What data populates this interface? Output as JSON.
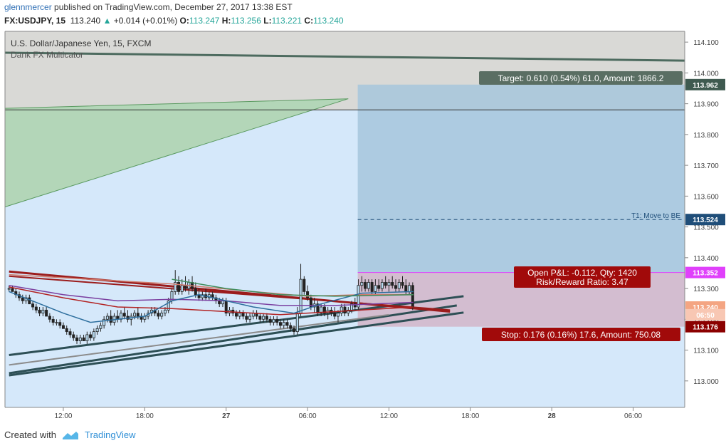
{
  "header": {
    "author": "glennmercer",
    "published": "published on TradingView.com, December 27, 2017 13:38 EST",
    "symbol": "FX:USDJPY, 15",
    "price": "113.240",
    "change": "+0.014 (+0.01%)",
    "o_label": "O:",
    "o": "113.247",
    "h_label": "H:",
    "h": "113.256",
    "l_label": "L:",
    "l": "113.221",
    "c_label": "C:",
    "c": "113.240"
  },
  "legend": {
    "series": "U.S. Dollar/Japanese Yen, 15, FXCM",
    "indicator": "Dank FX Multicator"
  },
  "annotations": {
    "target": "Target: 0.610 (0.54%) 61.0, Amount: 1866.2",
    "t1": "T1:  Move to BE",
    "open_pnl": "Open P&L: -0.112, Qty: 1420",
    "risk_reward": "Risk/Reward Ratio: 3.47",
    "stop": "Stop: 0.176 (0.16%) 17.6, Amount: 750.08"
  },
  "price_tags": [
    {
      "text": "113.962",
      "value": 113.962,
      "bg": "#3f5a50",
      "fg": "#ffffff"
    },
    {
      "text": "113.524",
      "value": 113.524,
      "bg": "#1f4e79",
      "fg": "#ffffff"
    },
    {
      "text": "113.352",
      "value": 113.352,
      "bg": "#e040fb",
      "fg": "#ffffff"
    },
    {
      "text": "113.240",
      "value": 113.24,
      "bg": "#f4a582",
      "fg": "#ffffff"
    },
    {
      "text": "06:50",
      "value": 113.215,
      "bg": "#f8c7b3",
      "fg": "#ffffff"
    },
    {
      "text": "113.176",
      "value": 113.176,
      "bg": "#8b0000",
      "fg": "#ffffff"
    }
  ],
  "footer": {
    "created_with": "Created with",
    "brand": "TradingView"
  },
  "colors": {
    "chart_bg": "#d5e8fa",
    "target_zone": "#a6c6dc",
    "stop_zone": "#d3bdd0",
    "upper_zone": "#d9d9d6",
    "up_candle": "#b9dcf2",
    "down_candle": "#222222"
  },
  "chart_data": {
    "type": "candlestick",
    "title": "U.S. Dollar/Japanese Yen, 15, FXCM",
    "ylim": [
      112.914,
      114.135
    ],
    "y_ticks": [
      113.0,
      113.1,
      113.2,
      113.3,
      113.4,
      113.5,
      113.6,
      113.7,
      113.8,
      113.9,
      114.0,
      114.1
    ],
    "y_tick_labels": [
      "113.000",
      "113.100",
      "113.200",
      "113.300",
      "113.400",
      "113.500",
      "113.600",
      "113.700",
      "113.800",
      "113.900",
      "114.000",
      "114.100"
    ],
    "x_tick_labels": [
      "12:00",
      "18:00",
      "27",
      "06:00",
      "12:00",
      "18:00",
      "28",
      "06:00"
    ],
    "x_ticks_hours": [
      12,
      18,
      24,
      30,
      36,
      42,
      48,
      54
    ],
    "x_range_hours": [
      7.7,
      57.8
    ],
    "candles": [
      [
        8.0,
        113.3,
        113.31,
        113.29,
        113.3
      ],
      [
        8.25,
        113.3,
        113.31,
        113.29,
        113.29
      ],
      [
        8.5,
        113.29,
        113.3,
        113.27,
        113.28
      ],
      [
        8.75,
        113.28,
        113.29,
        113.26,
        113.27
      ],
      [
        9.0,
        113.27,
        113.28,
        113.25,
        113.26
      ],
      [
        9.25,
        113.26,
        113.28,
        113.25,
        113.27
      ],
      [
        9.5,
        113.27,
        113.28,
        113.25,
        113.25
      ],
      [
        9.75,
        113.25,
        113.26,
        113.23,
        113.24
      ],
      [
        10.0,
        113.24,
        113.25,
        113.22,
        113.23
      ],
      [
        10.25,
        113.23,
        113.24,
        113.21,
        113.22
      ],
      [
        10.5,
        113.22,
        113.24,
        113.21,
        113.23
      ],
      [
        10.75,
        113.23,
        113.24,
        113.21,
        113.21
      ],
      [
        11.0,
        113.21,
        113.22,
        113.19,
        113.2
      ],
      [
        11.25,
        113.2,
        113.21,
        113.18,
        113.19
      ],
      [
        11.5,
        113.19,
        113.2,
        113.18,
        113.19
      ],
      [
        11.75,
        113.19,
        113.2,
        113.17,
        113.18
      ],
      [
        12.0,
        113.18,
        113.19,
        113.17,
        113.17
      ],
      [
        12.25,
        113.17,
        113.18,
        113.15,
        113.16
      ],
      [
        12.5,
        113.16,
        113.17,
        113.14,
        113.15
      ],
      [
        12.75,
        113.15,
        113.16,
        113.13,
        113.14
      ],
      [
        13.0,
        113.14,
        113.15,
        113.12,
        113.13
      ],
      [
        13.25,
        113.13,
        113.15,
        113.12,
        113.14
      ],
      [
        13.5,
        113.14,
        113.15,
        113.13,
        113.13
      ],
      [
        13.75,
        113.13,
        113.16,
        113.12,
        113.15
      ],
      [
        14.0,
        113.15,
        113.16,
        113.13,
        113.14
      ],
      [
        14.25,
        113.14,
        113.17,
        113.13,
        113.16
      ],
      [
        14.5,
        113.16,
        113.18,
        113.15,
        113.17
      ],
      [
        14.75,
        113.17,
        113.19,
        113.16,
        113.18
      ],
      [
        15.0,
        113.18,
        113.21,
        113.17,
        113.2
      ],
      [
        15.25,
        113.2,
        113.22,
        113.19,
        113.21
      ],
      [
        15.5,
        113.21,
        113.23,
        113.18,
        113.19
      ],
      [
        15.75,
        113.19,
        113.22,
        113.18,
        113.21
      ],
      [
        16.0,
        113.21,
        113.23,
        113.19,
        113.2
      ],
      [
        16.25,
        113.2,
        113.23,
        113.19,
        113.22
      ],
      [
        16.5,
        113.22,
        113.24,
        113.2,
        113.21
      ],
      [
        16.75,
        113.21,
        113.23,
        113.19,
        113.2
      ],
      [
        17.0,
        113.2,
        113.22,
        113.18,
        113.21
      ],
      [
        17.25,
        113.21,
        113.23,
        113.2,
        113.22
      ],
      [
        17.5,
        113.22,
        113.24,
        113.2,
        113.21
      ],
      [
        17.75,
        113.21,
        113.22,
        113.19,
        113.2
      ],
      [
        18.0,
        113.2,
        113.22,
        113.19,
        113.21
      ],
      [
        18.25,
        113.21,
        113.23,
        113.2,
        113.22
      ],
      [
        18.5,
        113.22,
        113.24,
        113.21,
        113.23
      ],
      [
        18.75,
        113.23,
        113.24,
        113.21,
        113.22
      ],
      [
        19.0,
        113.22,
        113.23,
        113.2,
        113.21
      ],
      [
        19.25,
        113.21,
        113.23,
        113.2,
        113.22
      ],
      [
        19.5,
        113.22,
        113.24,
        113.21,
        113.23
      ],
      [
        19.75,
        113.23,
        113.27,
        113.22,
        113.26
      ],
      [
        20.0,
        113.26,
        113.3,
        113.25,
        113.29
      ],
      [
        20.25,
        113.29,
        113.36,
        113.28,
        113.32
      ],
      [
        20.5,
        113.32,
        113.34,
        113.28,
        113.29
      ],
      [
        20.75,
        113.29,
        113.33,
        113.28,
        113.31
      ],
      [
        21.0,
        113.31,
        113.34,
        113.29,
        113.3
      ],
      [
        21.25,
        113.3,
        113.33,
        113.28,
        113.32
      ],
      [
        21.5,
        113.32,
        113.34,
        113.29,
        113.3
      ],
      [
        21.75,
        113.3,
        113.32,
        113.27,
        113.28
      ],
      [
        22.0,
        113.28,
        113.3,
        113.26,
        113.27
      ],
      [
        22.25,
        113.27,
        113.29,
        113.26,
        113.28
      ],
      [
        22.5,
        113.28,
        113.3,
        113.26,
        113.27
      ],
      [
        22.75,
        113.27,
        113.29,
        113.26,
        113.28
      ],
      [
        23.0,
        113.28,
        113.29,
        113.26,
        113.27
      ],
      [
        23.25,
        113.27,
        113.28,
        113.25,
        113.26
      ],
      [
        23.5,
        113.26,
        113.27,
        113.24,
        113.25
      ],
      [
        23.75,
        113.25,
        113.27,
        113.24,
        113.26
      ],
      [
        24.0,
        113.26,
        113.27,
        113.21,
        113.22
      ],
      [
        24.25,
        113.22,
        113.24,
        113.21,
        113.23
      ],
      [
        24.5,
        113.23,
        113.24,
        113.21,
        113.22
      ],
      [
        24.75,
        113.22,
        113.23,
        113.2,
        113.21
      ],
      [
        25.0,
        113.21,
        113.23,
        113.2,
        113.22
      ],
      [
        25.25,
        113.22,
        113.23,
        113.2,
        113.21
      ],
      [
        25.5,
        113.21,
        113.22,
        113.19,
        113.2
      ],
      [
        25.75,
        113.2,
        113.22,
        113.19,
        113.21
      ],
      [
        26.0,
        113.21,
        113.23,
        113.2,
        113.22
      ],
      [
        26.25,
        113.22,
        113.23,
        113.2,
        113.21
      ],
      [
        26.5,
        113.21,
        113.22,
        113.19,
        113.2
      ],
      [
        26.75,
        113.2,
        113.22,
        113.19,
        113.21
      ],
      [
        27.0,
        113.21,
        113.22,
        113.19,
        113.2
      ],
      [
        27.25,
        113.2,
        113.21,
        113.18,
        113.19
      ],
      [
        27.5,
        113.19,
        113.21,
        113.18,
        113.2
      ],
      [
        27.75,
        113.2,
        113.21,
        113.18,
        113.19
      ],
      [
        28.0,
        113.19,
        113.2,
        113.17,
        113.18
      ],
      [
        28.25,
        113.18,
        113.2,
        113.17,
        113.19
      ],
      [
        28.5,
        113.19,
        113.2,
        113.17,
        113.18
      ],
      [
        28.75,
        113.18,
        113.19,
        113.16,
        113.17
      ],
      [
        29.0,
        113.17,
        113.18,
        113.15,
        113.16
      ],
      [
        29.25,
        113.16,
        113.24,
        113.15,
        113.22
      ],
      [
        29.5,
        113.22,
        113.38,
        113.21,
        113.33
      ],
      [
        29.75,
        113.33,
        113.34,
        113.28,
        113.29
      ],
      [
        30.0,
        113.29,
        113.31,
        113.26,
        113.27
      ],
      [
        30.25,
        113.27,
        113.28,
        113.23,
        113.24
      ],
      [
        30.5,
        113.24,
        113.27,
        113.22,
        113.25
      ],
      [
        30.75,
        113.25,
        113.26,
        113.21,
        113.22
      ],
      [
        31.0,
        113.22,
        113.25,
        113.21,
        113.24
      ],
      [
        31.25,
        113.24,
        113.25,
        113.21,
        113.22
      ],
      [
        31.5,
        113.22,
        113.24,
        113.2,
        113.23
      ],
      [
        31.75,
        113.23,
        113.24,
        113.21,
        113.22
      ],
      [
        32.0,
        113.22,
        113.24,
        113.2,
        113.21
      ],
      [
        32.25,
        113.21,
        113.23,
        113.19,
        113.22
      ],
      [
        32.5,
        113.22,
        113.25,
        113.21,
        113.24
      ],
      [
        32.75,
        113.24,
        113.25,
        113.21,
        113.22
      ],
      [
        33.0,
        113.22,
        113.24,
        113.21,
        113.23
      ],
      [
        33.25,
        113.23,
        113.26,
        113.22,
        113.25
      ],
      [
        33.5,
        113.25,
        113.27,
        113.23,
        113.24
      ],
      [
        33.75,
        113.24,
        113.33,
        113.23,
        113.31
      ],
      [
        34.0,
        113.31,
        113.34,
        113.29,
        113.32
      ],
      [
        34.25,
        113.32,
        113.33,
        113.29,
        113.3
      ],
      [
        34.5,
        113.3,
        113.33,
        113.29,
        113.32
      ],
      [
        34.75,
        113.32,
        113.33,
        113.28,
        113.29
      ],
      [
        35.0,
        113.29,
        113.33,
        113.28,
        113.31
      ],
      [
        35.25,
        113.31,
        113.33,
        113.29,
        113.3
      ],
      [
        35.5,
        113.3,
        113.33,
        113.29,
        113.32
      ],
      [
        35.75,
        113.32,
        113.34,
        113.3,
        113.31
      ],
      [
        36.0,
        113.31,
        113.33,
        113.29,
        113.32
      ],
      [
        36.25,
        113.32,
        113.34,
        113.3,
        113.31
      ],
      [
        36.5,
        113.31,
        113.33,
        113.29,
        113.3
      ],
      [
        36.75,
        113.3,
        113.33,
        113.29,
        113.32
      ],
      [
        37.0,
        113.32,
        113.34,
        113.3,
        113.31
      ],
      [
        37.25,
        113.31,
        113.33,
        113.28,
        113.29
      ],
      [
        37.5,
        113.29,
        113.32,
        113.28,
        113.31
      ],
      [
        37.75,
        113.31,
        113.32,
        113.23,
        113.24
      ]
    ]
  }
}
